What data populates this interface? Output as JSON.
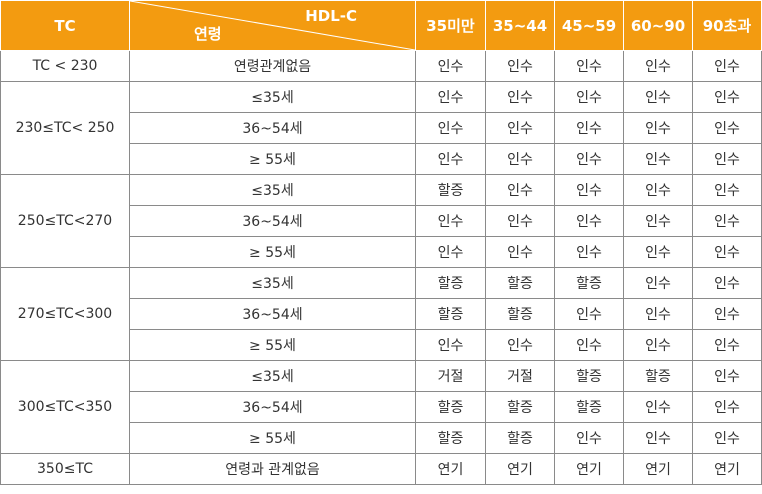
{
  "header": {
    "tc_label": "TC",
    "hdl_label": "HDL-C",
    "age_label": "연령",
    "columns": [
      "35미만",
      "35~44",
      "45~59",
      "60~90",
      "90초과"
    ]
  },
  "groups": [
    {
      "tc": "TC < 230",
      "rows": [
        {
          "age": "연령관계없음",
          "values": [
            "인수",
            "인수",
            "인수",
            "인수",
            "인수"
          ]
        }
      ]
    },
    {
      "tc": "230≤TC< 250",
      "rows": [
        {
          "age": "≤35세",
          "values": [
            "인수",
            "인수",
            "인수",
            "인수",
            "인수"
          ]
        },
        {
          "age": "36~54세",
          "values": [
            "인수",
            "인수",
            "인수",
            "인수",
            "인수"
          ]
        },
        {
          "age": "≥ 55세",
          "values": [
            "인수",
            "인수",
            "인수",
            "인수",
            "인수"
          ]
        }
      ]
    },
    {
      "tc": "250≤TC<270",
      "rows": [
        {
          "age": "≤35세",
          "values": [
            "할증",
            "인수",
            "인수",
            "인수",
            "인수"
          ]
        },
        {
          "age": "36~54세",
          "values": [
            "인수",
            "인수",
            "인수",
            "인수",
            "인수"
          ]
        },
        {
          "age": "≥ 55세",
          "values": [
            "인수",
            "인수",
            "인수",
            "인수",
            "인수"
          ]
        }
      ]
    },
    {
      "tc": "270≤TC<300",
      "rows": [
        {
          "age": "≤35세",
          "values": [
            "할증",
            "할증",
            "할증",
            "인수",
            "인수"
          ]
        },
        {
          "age": "36~54세",
          "values": [
            "할증",
            "할증",
            "인수",
            "인수",
            "인수"
          ]
        },
        {
          "age": "≥ 55세",
          "values": [
            "인수",
            "인수",
            "인수",
            "인수",
            "인수"
          ]
        }
      ]
    },
    {
      "tc": "300≤TC<350",
      "rows": [
        {
          "age": "≤35세",
          "values": [
            "거절",
            "거절",
            "할증",
            "할증",
            "인수"
          ]
        },
        {
          "age": "36~54세",
          "values": [
            "할증",
            "할증",
            "할증",
            "인수",
            "인수"
          ]
        },
        {
          "age": "≥ 55세",
          "values": [
            "할증",
            "할증",
            "인수",
            "인수",
            "인수"
          ]
        }
      ]
    },
    {
      "tc": "350≤TC",
      "rows": [
        {
          "age": "연령과 관계없음",
          "values": [
            "연기",
            "연기",
            "연기",
            "연기",
            "연기"
          ]
        }
      ]
    }
  ],
  "colors": {
    "header_bg": "#f39b10",
    "header_text": "#ffffff",
    "border": "#8a8a8a",
    "text": "#333333"
  }
}
